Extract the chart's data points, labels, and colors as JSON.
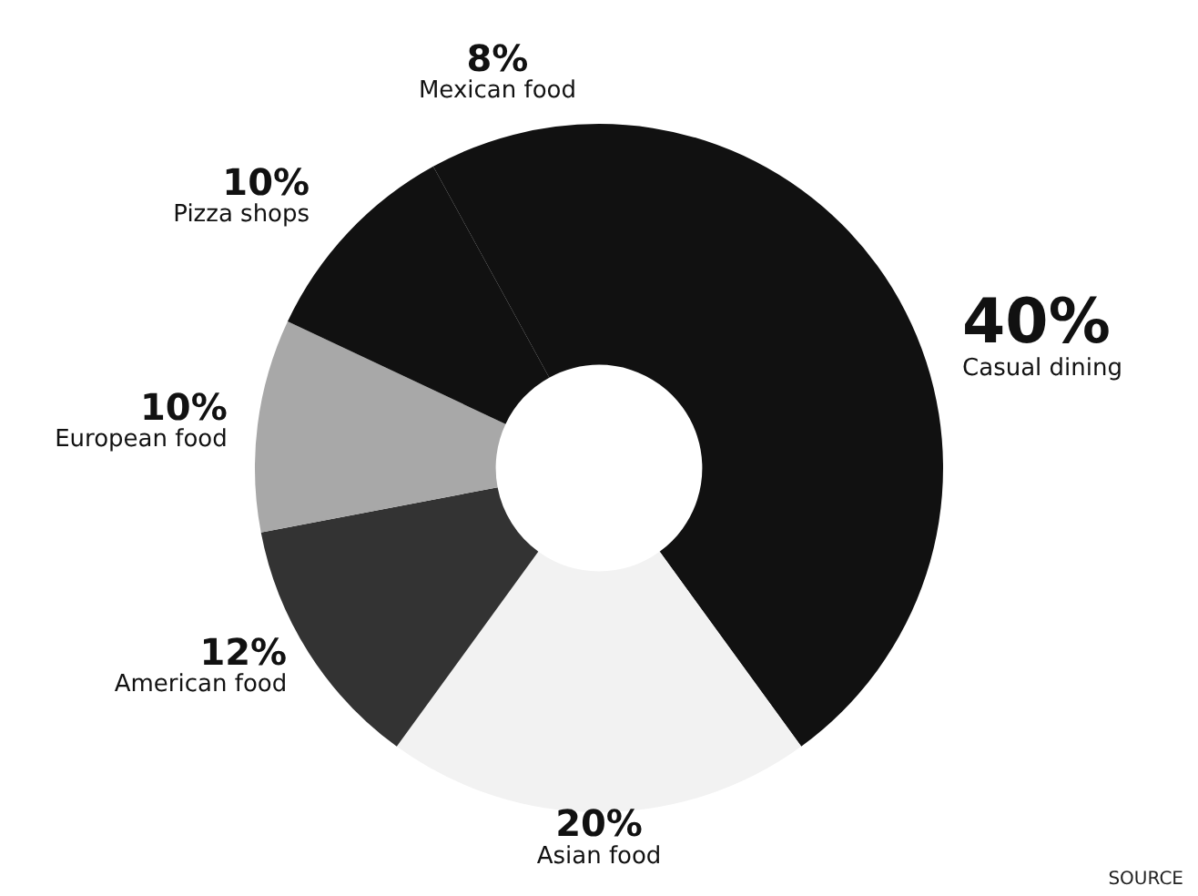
{
  "chart_data": {
    "type": "donut",
    "categories": [
      "Casual dining",
      "Asian food",
      "American food",
      "European food",
      "Pizza shops",
      "Mexican food"
    ],
    "values": [
      40,
      20,
      12,
      10,
      10,
      8
    ],
    "value_labels": [
      "40%",
      "20%",
      "12%",
      "10%",
      "10%",
      "8%"
    ],
    "colors": [
      "#111111",
      "#f2f2f2",
      "#333333",
      "#a8a8a8",
      "#111111",
      "#111111"
    ],
    "legend": false,
    "annotations": [
      "SOURCE"
    ]
  }
}
